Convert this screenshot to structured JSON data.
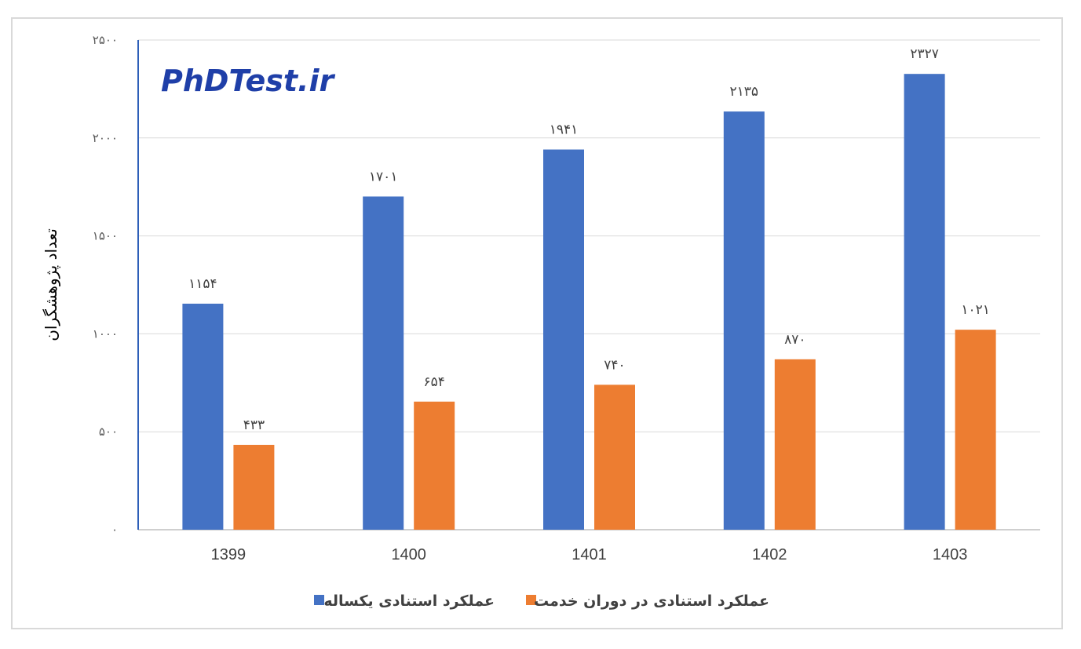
{
  "chart_data": {
    "type": "bar",
    "categories": [
      "1399",
      "1400",
      "1401",
      "1402",
      "1403"
    ],
    "series": [
      {
        "name": "عملکرد استنادی یکساله",
        "values": [
          1154,
          1701,
          1941,
          2135,
          2327
        ],
        "labels": [
          "۱۱۵۴",
          "۱۷۰۱",
          "۱۹۴۱",
          "۲۱۳۵",
          "۲۳۲۷"
        ],
        "color": "#4472c4"
      },
      {
        "name": "عملکرد استنادی در دوران خدمت",
        "values": [
          433,
          654,
          740,
          870,
          1021
        ],
        "labels": [
          "۴۳۳",
          "۶۵۴",
          "۷۴۰",
          "۸۷۰",
          "۱۰۲۱"
        ],
        "color": "#ed7d31"
      }
    ],
    "ylabel": "تعداد پژوهشگران",
    "ylim": [
      0,
      2500
    ],
    "yticks": [
      0,
      500,
      1000,
      1500,
      2000,
      2500
    ],
    "ytick_labels": [
      "۰",
      "۵۰۰",
      "۱۰۰۰",
      "۱۵۰۰",
      "۲۰۰۰",
      "۲۵۰۰"
    ],
    "grid": true,
    "legend_position": "bottom",
    "watermark": "PhDTest.ir",
    "colors": {
      "axis": "#2e5fb8",
      "grid": "#d9d9d9",
      "watermark": "#1f3fa8"
    }
  }
}
